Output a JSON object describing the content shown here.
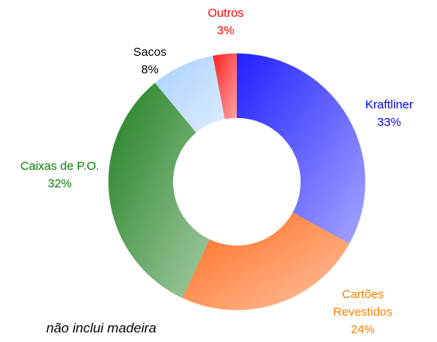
{
  "chart_data": {
    "type": "donut",
    "categories": [
      "Kraftliner",
      "Cartões Revestidos",
      "Caixas de P.O.",
      "Sacos",
      "Outros"
    ],
    "values": [
      33,
      24,
      32,
      8,
      3
    ],
    "value_labels": [
      "33%",
      "24%",
      "32%",
      "8%",
      "3%"
    ],
    "colors": [
      "#2020ff",
      "#ff6a1a",
      "#1f7f1f",
      "#a9d1ff",
      "#ff2020"
    ],
    "label_colors": [
      "#0000ff",
      "#ff7f00",
      "#008000",
      "#000000",
      "#ff0000"
    ],
    "annotation": "não inclui madeira"
  }
}
